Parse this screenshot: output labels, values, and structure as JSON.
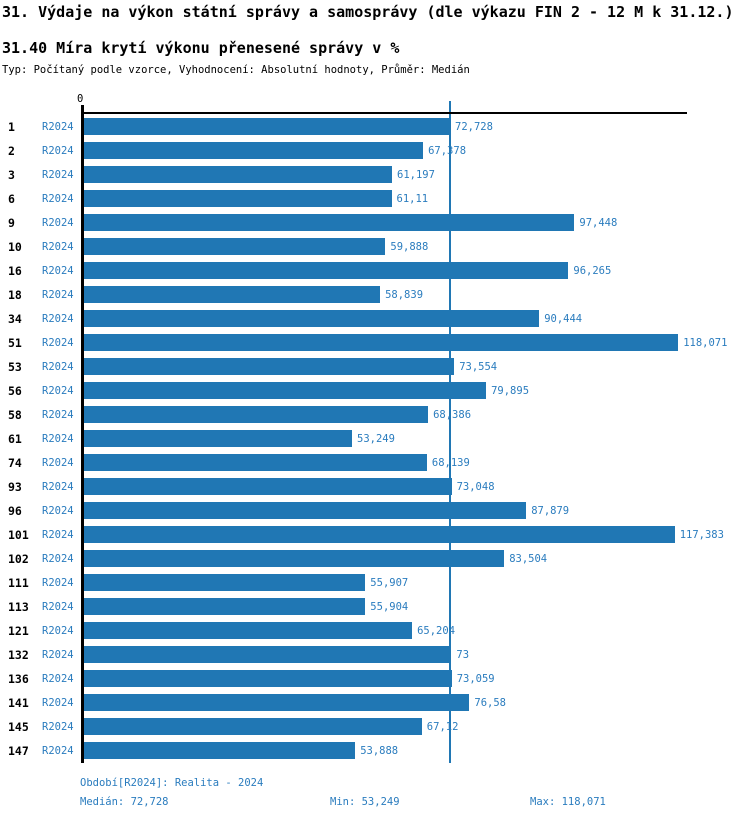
{
  "header": {
    "title": "31. Výdaje na výkon státní správy a samosprávy (dle výkazu FIN 2 - 12 M k 31.12.)",
    "subtitle": "31.40 Míra krytí výkonu přenesené správy v %",
    "meta": "Typ: Počítaný podle vzorce, Vyhodnocení: Absolutní hodnoty, Průměr: Medián"
  },
  "chart_data": {
    "type": "bar",
    "orientation": "horizontal",
    "value_unit": "%",
    "axis_zero_label": "0",
    "series_label": "R2024",
    "median_value": 72.728,
    "min_value": 53.249,
    "max_value": 118.071,
    "xlim": [
      0,
      118.071
    ],
    "grid": false,
    "colors": {
      "bar": "#2077B4",
      "median_line": "#2077B4",
      "text": "#2A7CBE"
    },
    "rows": [
      {
        "category": "1",
        "series": "R2024",
        "value": 72.728,
        "value_label": "72,728"
      },
      {
        "category": "2",
        "series": "R2024",
        "value": 67.378,
        "value_label": "67,378"
      },
      {
        "category": "3",
        "series": "R2024",
        "value": 61.197,
        "value_label": "61,197"
      },
      {
        "category": "6",
        "series": "R2024",
        "value": 61.11,
        "value_label": "61,11"
      },
      {
        "category": "9",
        "series": "R2024",
        "value": 97.448,
        "value_label": "97,448"
      },
      {
        "category": "10",
        "series": "R2024",
        "value": 59.888,
        "value_label": "59,888"
      },
      {
        "category": "16",
        "series": "R2024",
        "value": 96.265,
        "value_label": "96,265"
      },
      {
        "category": "18",
        "series": "R2024",
        "value": 58.839,
        "value_label": "58,839"
      },
      {
        "category": "34",
        "series": "R2024",
        "value": 90.444,
        "value_label": "90,444"
      },
      {
        "category": "51",
        "series": "R2024",
        "value": 118.071,
        "value_label": "118,071"
      },
      {
        "category": "53",
        "series": "R2024",
        "value": 73.554,
        "value_label": "73,554"
      },
      {
        "category": "56",
        "series": "R2024",
        "value": 79.895,
        "value_label": "79,895"
      },
      {
        "category": "58",
        "series": "R2024",
        "value": 68.386,
        "value_label": "68,386"
      },
      {
        "category": "61",
        "series": "R2024",
        "value": 53.249,
        "value_label": "53,249"
      },
      {
        "category": "74",
        "series": "R2024",
        "value": 68.139,
        "value_label": "68,139"
      },
      {
        "category": "93",
        "series": "R2024",
        "value": 73.048,
        "value_label": "73,048"
      },
      {
        "category": "96",
        "series": "R2024",
        "value": 87.879,
        "value_label": "87,879"
      },
      {
        "category": "101",
        "series": "R2024",
        "value": 117.383,
        "value_label": "117,383"
      },
      {
        "category": "102",
        "series": "R2024",
        "value": 83.504,
        "value_label": "83,504"
      },
      {
        "category": "111",
        "series": "R2024",
        "value": 55.907,
        "value_label": "55,907"
      },
      {
        "category": "113",
        "series": "R2024",
        "value": 55.904,
        "value_label": "55,904"
      },
      {
        "category": "121",
        "series": "R2024",
        "value": 65.204,
        "value_label": "65,204"
      },
      {
        "category": "132",
        "series": "R2024",
        "value": 73,
        "value_label": "73"
      },
      {
        "category": "136",
        "series": "R2024",
        "value": 73.059,
        "value_label": "73,059"
      },
      {
        "category": "141",
        "series": "R2024",
        "value": 76.58,
        "value_label": "76,58"
      },
      {
        "category": "145",
        "series": "R2024",
        "value": 67.12,
        "value_label": "67,12"
      },
      {
        "category": "147",
        "series": "R2024",
        "value": 53.888,
        "value_label": "53,888"
      }
    ]
  },
  "footer": {
    "period": "Období[R2024]: Realita - 2024",
    "median": "Medián: 72,728",
    "min": "Min: 53,249",
    "max": "Max: 118,071"
  }
}
